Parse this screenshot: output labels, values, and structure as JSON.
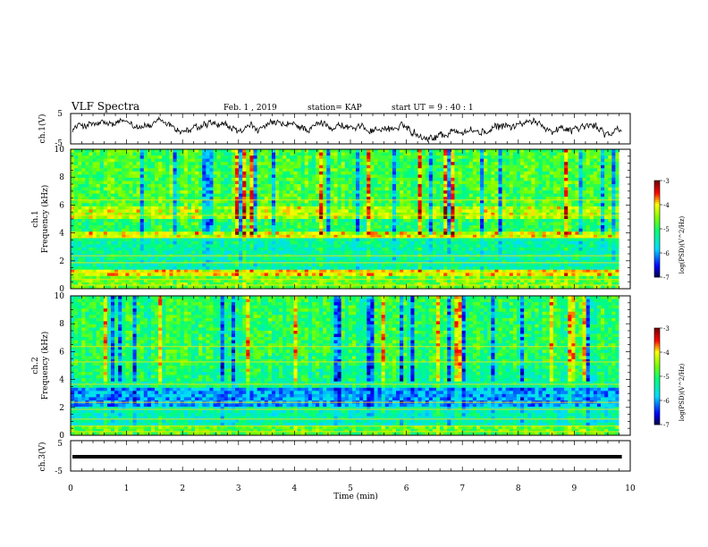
{
  "header": {
    "title": "VLF Spectra",
    "date": "Feb. 1 , 2019",
    "station": "station= KAP",
    "start": "start  UT =   9 : 40 : 1"
  },
  "chart_data": [
    {
      "type": "line",
      "name": "ch1-voltage",
      "ylabel": "ch.1(V)",
      "ylim": [
        -5,
        5
      ],
      "yticks": [
        "5",
        "-5"
      ],
      "xlim": [
        0,
        10
      ],
      "description_values": "noisy voltage trace hovering around 0 V, mostly between -2.5 and 3 V"
    },
    {
      "type": "heatmap",
      "name": "ch1-spectrogram",
      "ylabel_top": "ch.1",
      "ylabel": "Frequency (kHz)",
      "ylim": [
        0,
        10
      ],
      "yticks": [
        "0",
        "2",
        "4",
        "6",
        "8",
        "10"
      ],
      "xlim": [
        0,
        9.8
      ],
      "colorbar": {
        "label": "log(PSD)(V^2/Hz)",
        "range": [
          -7,
          -3
        ],
        "ticks": [
          "-3",
          "-4",
          "-5",
          "-6",
          "-7"
        ],
        "colors": [
          "#7a0000",
          "#ff0000",
          "#ffff00",
          "#00ff00",
          "#00ffff",
          "#0000ff",
          "#00003a"
        ]
      },
      "bands": [
        {
          "f_low": 0,
          "f_high": 0.8,
          "log_psd": -4.6
        },
        {
          "f_low": 0.8,
          "f_high": 1.4,
          "log_psd": -4.0
        },
        {
          "f_low": 1.4,
          "f_high": 3.6,
          "log_psd": -5.3
        },
        {
          "f_low": 3.6,
          "f_high": 4.0,
          "log_psd": -4.1
        },
        {
          "f_low": 4.0,
          "f_high": 5.0,
          "log_psd": -5.0
        },
        {
          "f_low": 5.0,
          "f_high": 6.0,
          "log_psd": -4.3
        },
        {
          "f_low": 6.0,
          "f_high": 10.0,
          "log_psd": -4.8
        }
      ]
    },
    {
      "type": "heatmap",
      "name": "ch2-spectrogram",
      "ylabel_top": "ch.2",
      "ylabel": "Frequency (kHz)",
      "ylim": [
        0,
        10
      ],
      "yticks": [
        "0",
        "2",
        "4",
        "6",
        "8",
        "10"
      ],
      "xlim": [
        0,
        9.8
      ],
      "colorbar": {
        "label": "log(PSD)(V^2/Hz)",
        "range": [
          -7,
          -3
        ],
        "ticks": [
          "-3",
          "-4",
          "-5",
          "-6",
          "-7"
        ],
        "colors": [
          "#7a0000",
          "#ff0000",
          "#ffff00",
          "#00ff00",
          "#00ffff",
          "#0000ff",
          "#00003a"
        ]
      },
      "bands": [
        {
          "f_low": 0,
          "f_high": 0.6,
          "log_psd": -4.7
        },
        {
          "f_low": 0.6,
          "f_high": 2.0,
          "log_psd": -5.4
        },
        {
          "f_low": 2.0,
          "f_high": 3.3,
          "log_psd": -6.0
        },
        {
          "f_low": 3.3,
          "f_high": 5.0,
          "log_psd": -5.2
        },
        {
          "f_low": 5.0,
          "f_high": 10.0,
          "log_psd": -5.0
        }
      ]
    },
    {
      "type": "line",
      "name": "ch3-voltage",
      "ylabel": "ch.3(V)",
      "ylim": [
        -5,
        5
      ],
      "yticks": [
        "5",
        "-5"
      ],
      "xlim": [
        0,
        10
      ],
      "xlabel": "Time (min)",
      "xticks": [
        "0",
        "1",
        "2",
        "3",
        "4",
        "5",
        "6",
        "7",
        "8",
        "9",
        "10"
      ],
      "constant_value": 0
    }
  ]
}
